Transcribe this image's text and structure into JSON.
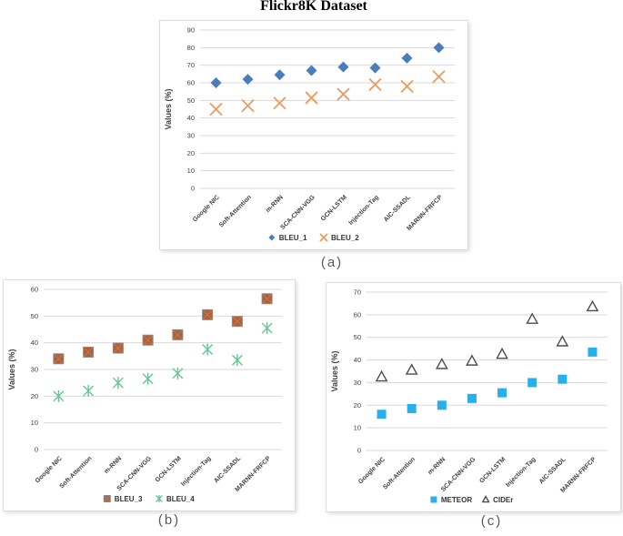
{
  "title": "Flickr8K Dataset",
  "colors": {
    "bleu1_blue": "#4A7EBB",
    "bleu2_orange": "#EF9A5D",
    "bleu3_brown": "#C35A21",
    "bleu4_green": "#66C691",
    "meteor_cyan": "#25B2EC",
    "cider_gray": "#4D4D4D",
    "gridline": "#D9D9D9",
    "axis_text": "#404040",
    "caption_gray": "#595959"
  },
  "chart_data": [
    {
      "type": "scatter",
      "caption": "(a)",
      "ylabel": "Values (%)",
      "ylim": [
        0,
        90
      ],
      "ytick_step": 10,
      "grid": true,
      "legend_position": "bottom",
      "categories": [
        "Google NIC",
        "Soft-Attention",
        "m-RNN",
        "SCA-CNN-VGG",
        "GCN-LSTM",
        "Injection-Tag",
        "AIC-SSADL",
        "MARNN-FRFCP"
      ],
      "series": [
        {
          "name": "BLEU_1",
          "marker": "diamond",
          "color": "#4A7EBB",
          "values": [
            60,
            62,
            64.5,
            67,
            69,
            68.5,
            74,
            80
          ]
        },
        {
          "name": "BLEU_2",
          "marker": "xmark",
          "color": "#EF9A5D",
          "values": [
            45,
            47,
            48.5,
            51.5,
            53.5,
            59,
            58,
            63.5
          ]
        }
      ]
    },
    {
      "type": "scatter",
      "caption": "(b)",
      "ylabel": "Values (%)",
      "ylim": [
        0,
        60
      ],
      "ytick_step": 10,
      "grid": true,
      "legend_position": "bottom",
      "categories": [
        "Google NIC",
        "Soft-Attention",
        "m-RNN",
        "SCA-CNN-VGG",
        "GCN-LSTM",
        "Injection-Tag",
        "AIC-SSADL",
        "MARNN-FRFCP"
      ],
      "series": [
        {
          "name": "BLEU_3",
          "marker": "square-x",
          "color": "#C35A21",
          "values": [
            34,
            36.5,
            38,
            41,
            43,
            50.5,
            48,
            56.5
          ]
        },
        {
          "name": "BLEU_4",
          "marker": "star",
          "color": "#66C691",
          "values": [
            20,
            22,
            25,
            26.5,
            28.5,
            37.5,
            33.5,
            45.5
          ]
        }
      ]
    },
    {
      "type": "scatter",
      "caption": "(c)",
      "ylabel": "Values (%)",
      "ylim": [
        0,
        70
      ],
      "ytick_step": 10,
      "grid": true,
      "legend_position": "bottom",
      "categories": [
        "Google NIC",
        "Soft-Attention",
        "m-RNN",
        "SCA-CNN-VGG",
        "GCN-LSTM",
        "Injection-Tag",
        "AIC-SSADL",
        "MARNN-FRFCP"
      ],
      "series": [
        {
          "name": "METEOR",
          "marker": "square",
          "color": "#25B2EC",
          "values": [
            16,
            18.5,
            20,
            23,
            25.5,
            30,
            31.5,
            43.5
          ]
        },
        {
          "name": "CIDEr",
          "marker": "triangle",
          "color": "#4D4D4D",
          "values": [
            32.5,
            35.5,
            38,
            39.5,
            42.5,
            58,
            48,
            63.5
          ]
        }
      ]
    }
  ]
}
